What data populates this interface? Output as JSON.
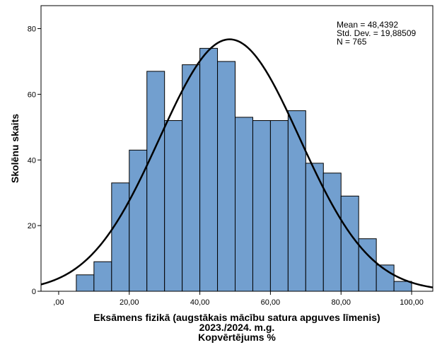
{
  "chart_data": {
    "type": "histogram",
    "xlabel_lines": [
      "Eksāmens fizikā (augstākais mācību satura apguves līmenis)",
      "2023./2024. m.g.",
      "Kopvērtējums %"
    ],
    "ylabel": "Skolēnu skaits",
    "xlim": [
      -5,
      106
    ],
    "ylim": [
      0,
      87
    ],
    "x_ticks": [
      0,
      20,
      40,
      60,
      80,
      100
    ],
    "x_tick_labels": [
      ",00",
      "20,00",
      "40,00",
      "60,00",
      "80,00",
      "100,00"
    ],
    "y_ticks": [
      0,
      20,
      40,
      60,
      80
    ],
    "y_tick_labels": [
      "0",
      "20",
      "40",
      "60",
      "80"
    ],
    "bin_width": 5,
    "bins": [
      {
        "start": 5,
        "end": 10,
        "count": 5
      },
      {
        "start": 10,
        "end": 15,
        "count": 9
      },
      {
        "start": 15,
        "end": 20,
        "count": 33
      },
      {
        "start": 20,
        "end": 25,
        "count": 43
      },
      {
        "start": 25,
        "end": 30,
        "count": 67
      },
      {
        "start": 30,
        "end": 35,
        "count": 52
      },
      {
        "start": 35,
        "end": 40,
        "count": 69
      },
      {
        "start": 40,
        "end": 45,
        "count": 74
      },
      {
        "start": 45,
        "end": 50,
        "count": 70
      },
      {
        "start": 50,
        "end": 55,
        "count": 53
      },
      {
        "start": 55,
        "end": 60,
        "count": 52
      },
      {
        "start": 60,
        "end": 65,
        "count": 52
      },
      {
        "start": 65,
        "end": 70,
        "count": 55
      },
      {
        "start": 70,
        "end": 75,
        "count": 39
      },
      {
        "start": 75,
        "end": 80,
        "count": 36
      },
      {
        "start": 80,
        "end": 85,
        "count": 29
      },
      {
        "start": 85,
        "end": 90,
        "count": 16
      },
      {
        "start": 90,
        "end": 95,
        "count": 8
      },
      {
        "start": 95,
        "end": 100,
        "count": 3
      }
    ],
    "normal_curve": {
      "mean": 48.4392,
      "std_dev": 19.88509,
      "n": 765
    },
    "stats_lines": [
      "Mean = 48,4392",
      "Std. Dev. = 19,88509",
      "N = 765"
    ],
    "grid": false,
    "legend": "none",
    "colors": {
      "bar_fill": "#729fcf",
      "bar_stroke": "#000000",
      "curve": "#000000",
      "frame": "#000000",
      "background": "#ffffff"
    }
  }
}
